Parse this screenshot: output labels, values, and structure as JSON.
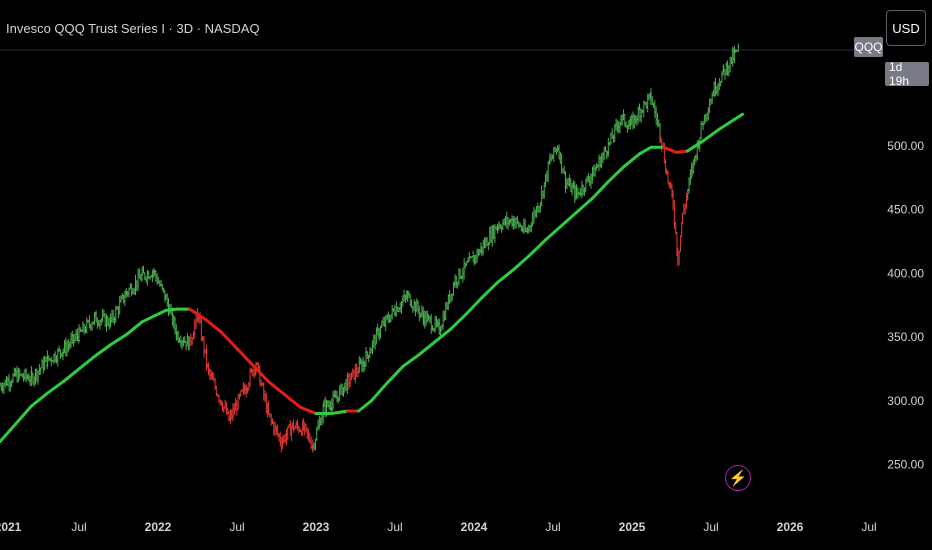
{
  "header": {
    "title": "Invesco QQQ Trust Series I · 3D · NASDAQ"
  },
  "controls": {
    "currency": "USD",
    "symbol_tag": "QQQ",
    "countdown": "1d 19h"
  },
  "icons": {
    "indicator": "lightning-bolt-icon"
  },
  "colors": {
    "background": "#000000",
    "up": "#4caf50",
    "down": "#e53935",
    "ma_up": "#2ecc40",
    "ma_down": "#e11d1d",
    "grid": "#2a2e39",
    "text": "#d1d4dc"
  },
  "chart_data": {
    "type": "line",
    "title": "Invesco QQQ Trust Series I · 3D · NASDAQ",
    "xlabel": "",
    "ylabel": "",
    "x_ticks": [
      "2021",
      "Jul",
      "2022",
      "Jul",
      "2023",
      "Jul",
      "2024",
      "Jul",
      "2025",
      "Jul",
      "2026",
      "Jul"
    ],
    "y_ticks": [
      "250.00",
      "300.00",
      "350.00",
      "400.00",
      "450.00",
      "500.00"
    ],
    "ylim": [
      230,
      595
    ],
    "xlim": [
      2021.0,
      2026.55
    ],
    "series": [
      {
        "style": "price-bars",
        "color_up": "#4caf50",
        "color_down": "#e53935",
        "points": [
          [
            2021.0,
            312
          ],
          [
            2021.1,
            320
          ],
          [
            2021.2,
            318
          ],
          [
            2021.3,
            332
          ],
          [
            2021.4,
            340
          ],
          [
            2021.5,
            352
          ],
          [
            2021.6,
            365
          ],
          [
            2021.7,
            362
          ],
          [
            2021.8,
            385
          ],
          [
            2021.9,
            398
          ],
          [
            2021.97,
            402
          ],
          [
            2022.05,
            380
          ],
          [
            2022.12,
            352
          ],
          [
            2022.2,
            345
          ],
          [
            2022.25,
            368
          ],
          [
            2022.32,
            322
          ],
          [
            2022.4,
            300
          ],
          [
            2022.45,
            285
          ],
          [
            2022.55,
            310
          ],
          [
            2022.62,
            330
          ],
          [
            2022.7,
            288
          ],
          [
            2022.78,
            268
          ],
          [
            2022.85,
            280
          ],
          [
            2022.92,
            278
          ],
          [
            2022.98,
            265
          ],
          [
            2023.05,
            295
          ],
          [
            2023.1,
            298
          ],
          [
            2023.2,
            315
          ],
          [
            2023.3,
            330
          ],
          [
            2023.4,
            355
          ],
          [
            2023.5,
            372
          ],
          [
            2023.58,
            382
          ],
          [
            2023.68,
            366
          ],
          [
            2023.78,
            356
          ],
          [
            2023.88,
            395
          ],
          [
            2023.97,
            408
          ],
          [
            2024.05,
            420
          ],
          [
            2024.15,
            438
          ],
          [
            2024.25,
            442
          ],
          [
            2024.33,
            432
          ],
          [
            2024.42,
            458
          ],
          [
            2024.48,
            488
          ],
          [
            2024.53,
            500
          ],
          [
            2024.58,
            472
          ],
          [
            2024.65,
            462
          ],
          [
            2024.75,
            478
          ],
          [
            2024.85,
            500
          ],
          [
            2024.93,
            522
          ],
          [
            2024.99,
            516
          ],
          [
            2025.05,
            528
          ],
          [
            2025.12,
            538
          ],
          [
            2025.18,
            510
          ],
          [
            2025.22,
            478
          ],
          [
            2025.26,
            455
          ],
          [
            2025.29,
            412
          ],
          [
            2025.32,
            445
          ],
          [
            2025.38,
            482
          ],
          [
            2025.45,
            520
          ],
          [
            2025.52,
            545
          ],
          [
            2025.58,
            558
          ],
          [
            2025.64,
            570
          ],
          [
            2025.68,
            576
          ]
        ]
      },
      {
        "style": "moving-average",
        "color_up": "#2ecc40",
        "color_down": "#e11d1d",
        "points": [
          [
            2021.0,
            268
          ],
          [
            2021.1,
            282
          ],
          [
            2021.2,
            296
          ],
          [
            2021.3,
            306
          ],
          [
            2021.4,
            315
          ],
          [
            2021.5,
            325
          ],
          [
            2021.6,
            335
          ],
          [
            2021.7,
            344
          ],
          [
            2021.8,
            352
          ],
          [
            2021.9,
            362
          ],
          [
            2022.0,
            368
          ],
          [
            2022.05,
            371
          ],
          [
            2022.12,
            372
          ],
          [
            2022.2,
            372
          ],
          [
            2022.3,
            364
          ],
          [
            2022.4,
            354
          ],
          [
            2022.5,
            341
          ],
          [
            2022.6,
            328
          ],
          [
            2022.7,
            315
          ],
          [
            2022.8,
            305
          ],
          [
            2022.9,
            295
          ],
          [
            2023.0,
            290
          ],
          [
            2023.1,
            290
          ],
          [
            2023.2,
            292
          ],
          [
            2023.27,
            292
          ],
          [
            2023.35,
            300
          ],
          [
            2023.45,
            314
          ],
          [
            2023.55,
            327
          ],
          [
            2023.65,
            336
          ],
          [
            2023.75,
            346
          ],
          [
            2023.85,
            356
          ],
          [
            2023.95,
            368
          ],
          [
            2024.05,
            381
          ],
          [
            2024.15,
            393
          ],
          [
            2024.25,
            403
          ],
          [
            2024.35,
            414
          ],
          [
            2024.45,
            426
          ],
          [
            2024.55,
            437
          ],
          [
            2024.65,
            448
          ],
          [
            2024.75,
            459
          ],
          [
            2024.85,
            472
          ],
          [
            2024.95,
            484
          ],
          [
            2025.05,
            494
          ],
          [
            2025.12,
            499
          ],
          [
            2025.2,
            499
          ],
          [
            2025.28,
            495
          ],
          [
            2025.35,
            496
          ],
          [
            2025.45,
            504
          ],
          [
            2025.55,
            513
          ],
          [
            2025.65,
            521
          ],
          [
            2025.7,
            525
          ]
        ],
        "down_ranges": [
          [
            2022.2,
            2022.98
          ],
          [
            2023.2,
            2023.27
          ],
          [
            2025.18,
            2025.35
          ]
        ]
      }
    ]
  }
}
